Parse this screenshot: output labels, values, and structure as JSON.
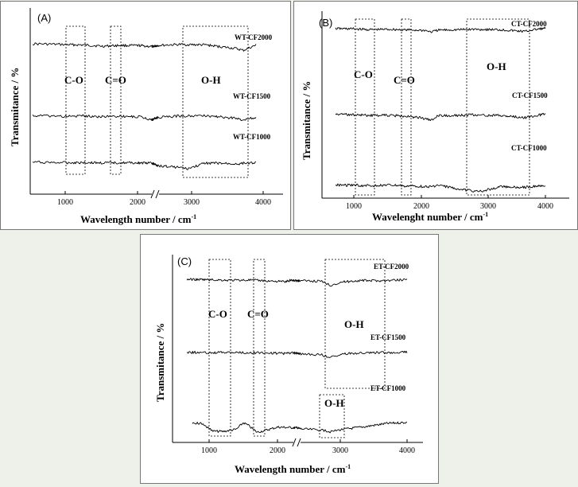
{
  "chart_data": [
    {
      "type": "line",
      "panel_label": "(A)",
      "xlabel": "Wavelength number / cm",
      "xlabel_sup": "-1",
      "ylabel": "Transmitance / %",
      "xlim": [
        700,
        4100
      ],
      "axis_break_near": 2250,
      "x_ticks": [
        1000,
        2000,
        3000,
        4000
      ],
      "series": [
        {
          "name": "WT-CF2000",
          "x": [
            700,
            1050,
            1250,
            1520,
            1750,
            2050,
            2250,
            2850,
            3200,
            3620,
            3720,
            3900
          ],
          "y": [
            0.9,
            0.86,
            0.85,
            0.8,
            0.83,
            0.82,
            0.78,
            0.87,
            0.85,
            0.7,
            0.62,
            0.84
          ]
        },
        {
          "name": "WT-CF1500",
          "x": [
            700,
            1050,
            1250,
            1520,
            1750,
            2050,
            2250,
            2850,
            3200,
            3620,
            3720,
            3900
          ],
          "y": [
            0.55,
            0.52,
            0.54,
            0.51,
            0.53,
            0.5,
            0.4,
            0.54,
            0.55,
            0.45,
            0.38,
            0.5
          ]
        },
        {
          "name": "WT-CF1000",
          "x": [
            700,
            1050,
            1250,
            1520,
            1750,
            2050,
            2250,
            2880,
            2940,
            3200,
            3620,
            3900
          ],
          "y": [
            0.3,
            0.28,
            0.29,
            0.27,
            0.28,
            0.27,
            0.26,
            0.1,
            0.05,
            0.27,
            0.24,
            0.29
          ]
        }
      ],
      "annotations": [
        {
          "text": "C-O",
          "x_range": [
            1030,
            1320
          ]
        },
        {
          "text": "C=O",
          "x_range": [
            1680,
            1830
          ]
        },
        {
          "text": "O-H",
          "x_range": [
            2800,
            3770
          ]
        }
      ]
    },
    {
      "type": "line",
      "panel_label": "(B)",
      "xlabel": "Wavelenght number / cm",
      "xlabel_sup": "-1",
      "ylabel": "Transmitance / %",
      "xlim": [
        700,
        4100
      ],
      "x_ticks": [
        1000,
        2000,
        3000,
        4000
      ],
      "series": [
        {
          "name": "CT-CF2000",
          "x": [
            700,
            1000,
            1250,
            1500,
            1800,
            2050,
            2150,
            2250,
            2800,
            3200,
            3650,
            3750,
            4000
          ],
          "y": [
            0.93,
            0.92,
            0.88,
            0.9,
            0.87,
            0.85,
            0.78,
            0.86,
            0.9,
            0.88,
            0.8,
            0.86,
            0.95
          ]
        },
        {
          "name": "CT-CF1500",
          "x": [
            700,
            1000,
            1250,
            1500,
            1800,
            2050,
            2150,
            2250,
            2800,
            3200,
            3650,
            3750,
            4000
          ],
          "y": [
            0.6,
            0.58,
            0.55,
            0.56,
            0.52,
            0.45,
            0.38,
            0.54,
            0.57,
            0.55,
            0.48,
            0.52,
            0.6
          ]
        },
        {
          "name": "CT-CF1000",
          "x": [
            700,
            1000,
            1250,
            1500,
            1800,
            2050,
            2150,
            2250,
            2850,
            2950,
            3200,
            3650,
            4000
          ],
          "y": [
            0.28,
            0.27,
            0.25,
            0.27,
            0.24,
            0.23,
            0.22,
            0.26,
            0.05,
            0.1,
            0.22,
            0.2,
            0.27
          ]
        }
      ],
      "annotations": [
        {
          "text": "C-O",
          "x_range": [
            1000,
            1280
          ]
        },
        {
          "text": "C=O",
          "x_range": [
            1650,
            1800
          ]
        },
        {
          "text": "O-H",
          "x_range": [
            2750,
            3750
          ]
        }
      ]
    },
    {
      "type": "line",
      "panel_label": "(C)",
      "xlabel": "Wavelength number / cm",
      "xlabel_sup": "-1",
      "ylabel": "Transmitance / %",
      "xlim": [
        600,
        4100
      ],
      "axis_break_near": 2300,
      "x_ticks": [
        1000,
        2000,
        3000,
        4000
      ],
      "series": [
        {
          "name": "ET-CF2000",
          "x": [
            600,
            1000,
            1300,
            1600,
            1800,
            2150,
            2250,
            2800,
            2900,
            3000,
            3300,
            3700,
            4000
          ],
          "y": [
            0.9,
            0.88,
            0.86,
            0.87,
            0.84,
            0.8,
            0.86,
            0.82,
            0.65,
            0.78,
            0.85,
            0.84,
            0.9
          ]
        },
        {
          "name": "ET-CF1500",
          "x": [
            600,
            1000,
            1300,
            1600,
            1800,
            2150,
            2250,
            2800,
            2900,
            3000,
            3300,
            3700,
            4000
          ],
          "y": [
            0.58,
            0.56,
            0.57,
            0.55,
            0.56,
            0.52,
            0.56,
            0.48,
            0.35,
            0.5,
            0.55,
            0.57,
            0.58
          ]
        },
        {
          "name": "ET-CF1000",
          "x": [
            700,
            900,
            1050,
            1200,
            1400,
            1500,
            1580,
            1700,
            1800,
            2000,
            2400,
            2800,
            2900,
            3000,
            3400,
            3700,
            4000
          ],
          "y": [
            0.28,
            0.24,
            0.05,
            0.04,
            0.1,
            0.28,
            0.2,
            0.02,
            0.06,
            0.16,
            0.14,
            0.08,
            0.03,
            0.09,
            0.18,
            0.26,
            0.29
          ]
        }
      ],
      "annotations": [
        {
          "text": "C-O",
          "x_range": [
            1000,
            1330
          ]
        },
        {
          "text": "C=O",
          "x_range": [
            1680,
            1830
          ]
        },
        {
          "text": "O-H",
          "x_range": [
            2750,
            3700
          ]
        },
        {
          "text": "O-H",
          "x_range": [
            2700,
            3050
          ]
        }
      ]
    }
  ]
}
